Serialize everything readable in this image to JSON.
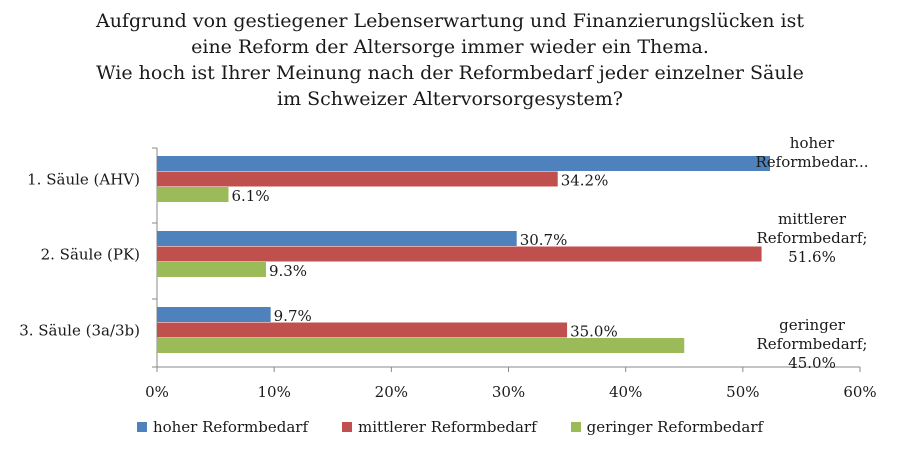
{
  "chart_data": {
    "type": "bar",
    "orientation": "horizontal",
    "title_lines": [
      "Aufgrund von gestiegener Lebenserwartung und Finanzierungslücken ist",
      "eine Reform der Altersorge immer wieder ein Thema.",
      "Wie hoch ist Ihrer Meinung nach der Reformbedarf jeder einzelner Säule",
      "im Schweizer Altervorsorgesystem?"
    ],
    "categories": [
      "1. Säule (AHV)",
      "2. Säule (PK)",
      "3. Säule (3a/3b)"
    ],
    "series": [
      {
        "name": "hoher Reformbedarf",
        "color": "#4f81bd",
        "values": [
          52.5,
          30.7,
          9.7
        ],
        "labels": [
          "",
          "30.7%",
          "9.7%"
        ]
      },
      {
        "name": "mittlerer Reformbedarf",
        "color": "#c0504d",
        "values": [
          34.2,
          51.6,
          35.0
        ],
        "labels": [
          "34.2%",
          "",
          "35.0%"
        ]
      },
      {
        "name": "geringer Reformbedarf",
        "color": "#9bbb59",
        "values": [
          6.1,
          9.3,
          45.0
        ],
        "labels": [
          "6.1%",
          "9.3%",
          ""
        ]
      }
    ],
    "callouts": [
      [
        "hoher",
        "Reformbedar..."
      ],
      [
        "mittlerer",
        "Reformbedarf;",
        "51.6%"
      ],
      [
        "geringer",
        "Reformbedarf;",
        "45.0%"
      ]
    ],
    "xlim": [
      0,
      60
    ],
    "xticks": [
      "0%",
      "10%",
      "20%",
      "30%",
      "40%",
      "50%",
      "60%"
    ],
    "legend_position": "bottom",
    "grid": false
  }
}
